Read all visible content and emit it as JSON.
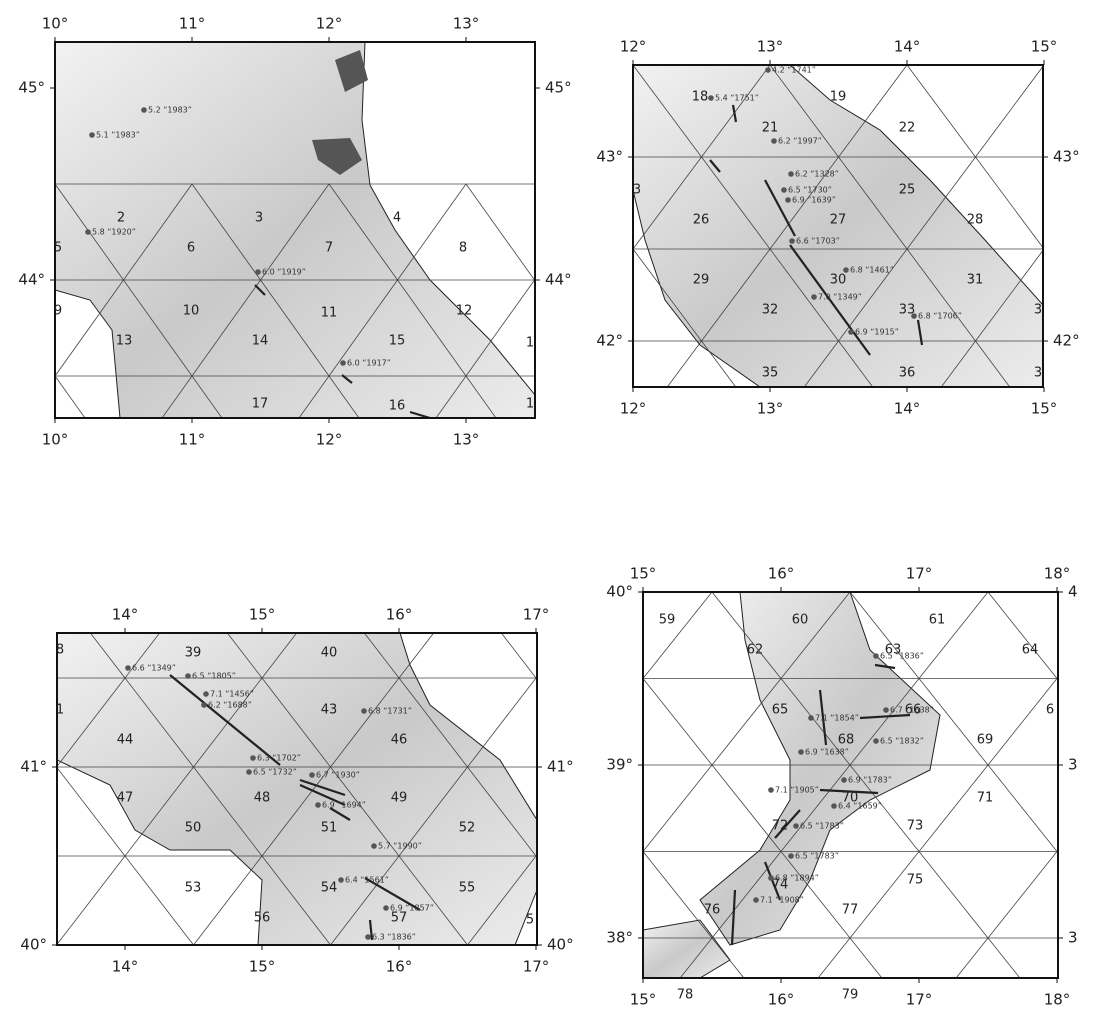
{
  "maps": [
    {
      "lon_labels": [
        "10°",
        "11°",
        "12°",
        "13°"
      ],
      "lat_labels": [
        "45°",
        "44°"
      ],
      "right_lat_labels": [
        "45°",
        "44°"
      ],
      "cells": [
        "2",
        "3",
        "4",
        "8",
        "6",
        "7",
        "10",
        "11",
        "12",
        "13",
        "14",
        "15",
        "17",
        "16",
        "5",
        "9",
        "1",
        "1"
      ],
      "events": [
        "5.2 “1983”",
        "5.1 “1983”",
        "5.8 “1920”",
        "6.0 “1919”",
        "6.0 “1917”"
      ]
    },
    {
      "lon_labels": [
        "12°",
        "13°",
        "14°",
        "15°"
      ],
      "lat_labels": [
        "43°",
        "42°"
      ],
      "right_lat_labels": [
        "43°",
        "42°"
      ],
      "cells": [
        "18",
        "19",
        "21",
        "22",
        "25",
        "26",
        "27",
        "28",
        "29",
        "30",
        "31",
        "32",
        "33",
        "35",
        "36",
        "3",
        "3",
        "3"
      ],
      "events": [
        "4.2 “1741”",
        "5.4 “1751”",
        "6.2 “1997”",
        "6.2 “1328”",
        "6.5 “1730”",
        "6.9 “1639”",
        "6.6 “1703”",
        "6.8 “1461”",
        "7.0 “1349”",
        "6.9 “1915”",
        "6.8 “1706”"
      ]
    },
    {
      "lon_labels": [
        "14°",
        "15°",
        "16°",
        "17°"
      ],
      "lat_labels": [
        "41°",
        "40°"
      ],
      "right_lat_labels": [
        "41°",
        "40°"
      ],
      "cells": [
        "39",
        "40",
        "43",
        "44",
        "46",
        "47",
        "48",
        "49",
        "50",
        "51",
        "52",
        "53",
        "54",
        "55",
        "56",
        "57",
        "8",
        "1",
        "5"
      ],
      "events": [
        "6.6 “1349”",
        "6.5 “1805”",
        "7.1 “1456”",
        "6.2 “1688”",
        "6.3 “1702”",
        "6.5 “1732”",
        "6.7 “1930”",
        "6.8 “1731”",
        "6.9 “1694”",
        "5.7 “1990”",
        "6.4 “1561”",
        "6.9 “1857”",
        "6.3 “1836”"
      ]
    },
    {
      "lon_labels": [
        "15°",
        "16°",
        "17°",
        "18°"
      ],
      "lat_labels": [
        "40°",
        "39°",
        "38°"
      ],
      "right_lat_labels": [
        "4",
        "3",
        "3"
      ],
      "cells": [
        "59",
        "60",
        "61",
        "62",
        "63",
        "64",
        "65",
        "66",
        "68",
        "69",
        "6",
        "70",
        "71",
        "72",
        "73",
        "74",
        "75",
        "76",
        "77",
        "78",
        "79"
      ],
      "events": [
        "6.5 “1836”",
        "6.7 “1638”",
        "7.1 “1854”",
        "6.5 “1832”",
        "6.9 “1638”",
        "6.9 “1783”",
        "6.4 “1659”",
        "6.5 “1783”",
        "7.1 “1905”",
        "6.5 “1783”",
        "6.8 “1894”",
        "7.1 “1908”"
      ]
    }
  ]
}
